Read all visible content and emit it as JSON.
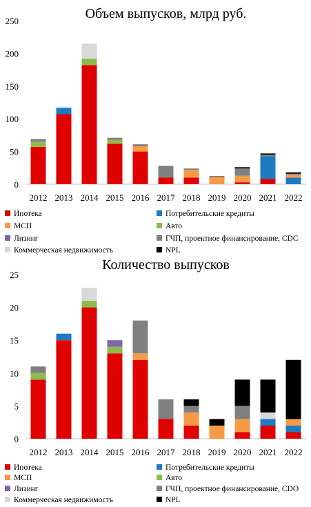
{
  "colors": {
    "mortgage": "#e00000",
    "consumer": "#1f7bbf",
    "sme": "#f79a46",
    "auto": "#8cbd4a",
    "leasing": "#8066a6",
    "ppp": "#808080",
    "commercial": "#d9d9d9",
    "npl": "#000000"
  },
  "chart_data": [
    {
      "type": "bar",
      "stacked": true,
      "title": "Объем выпусков, млрд руб.",
      "categories": [
        "2012",
        "2013",
        "2014",
        "2015",
        "2016",
        "2017",
        "2018",
        "2019",
        "2020",
        "2021",
        "2022"
      ],
      "ylim": [
        0,
        250
      ],
      "yticks": [
        0,
        50,
        100,
        150,
        200,
        250
      ],
      "legend_position": "bottom",
      "series": [
        {
          "name": "Ипотека",
          "key": "mortgage",
          "values": [
            57,
            107,
            182,
            62,
            50,
            10,
            10,
            0,
            3,
            8,
            0
          ]
        },
        {
          "name": "Потребительские кредиты",
          "key": "consumer",
          "values": [
            0,
            10,
            0,
            0,
            0,
            0,
            0,
            0,
            0,
            35,
            10
          ]
        },
        {
          "name": "МСП",
          "key": "sme",
          "values": [
            0,
            0,
            0,
            0,
            8,
            0,
            12,
            11,
            10,
            0,
            4
          ]
        },
        {
          "name": "Авто",
          "key": "auto",
          "values": [
            8,
            0,
            10,
            6,
            0,
            0,
            0,
            0,
            0,
            0,
            0
          ]
        },
        {
          "name": "Лизинг",
          "key": "leasing",
          "values": [
            1,
            0,
            0,
            1,
            0,
            0,
            0,
            0,
            0,
            0,
            0
          ]
        },
        {
          "name": "ГЧП, проектное финансирование, CDC",
          "key": "ppp",
          "values": [
            3,
            0,
            0,
            2,
            3,
            18,
            2,
            0,
            11,
            2,
            2
          ]
        },
        {
          "name": "Коммерческая недвижимость",
          "key": "commercial",
          "values": [
            0,
            0,
            23,
            0,
            0,
            0,
            0,
            0,
            0,
            0,
            0
          ]
        },
        {
          "name": "NPL",
          "key": "npl",
          "values": [
            0,
            0,
            0,
            0,
            0,
            0,
            0,
            1,
            2,
            2,
            2
          ]
        }
      ]
    },
    {
      "type": "bar",
      "stacked": true,
      "title": "Количество выпусков",
      "categories": [
        "2012",
        "2013",
        "2014",
        "2015",
        "2016",
        "2017",
        "2018",
        "2019",
        "2020",
        "2021",
        "2022"
      ],
      "ylim": [
        0,
        25
      ],
      "yticks": [
        0,
        5,
        10,
        15,
        20,
        25
      ],
      "legend_position": "bottom",
      "series": [
        {
          "name": "Ипотека",
          "key": "mortgage",
          "values": [
            9,
            15,
            20,
            13,
            12,
            3,
            2,
            0,
            1,
            2,
            1
          ]
        },
        {
          "name": "Потребительские кредиты",
          "key": "consumer",
          "values": [
            0,
            1,
            0,
            0,
            0,
            0,
            0,
            0,
            0,
            1,
            1
          ]
        },
        {
          "name": "МСП",
          "key": "sme",
          "values": [
            0,
            0,
            0,
            0,
            1,
            0,
            2,
            2,
            2,
            0,
            1
          ]
        },
        {
          "name": "Авто",
          "key": "auto",
          "values": [
            1,
            0,
            1,
            1,
            0,
            0,
            0,
            0,
            0,
            0,
            0
          ]
        },
        {
          "name": "Лизинг",
          "key": "leasing",
          "values": [
            0,
            0,
            0,
            1,
            0,
            0,
            0,
            0,
            0,
            0,
            0
          ]
        },
        {
          "name": "ГЧП, проектное финансирование, CDO",
          "key": "ppp",
          "values": [
            1,
            0,
            0,
            0,
            5,
            3,
            1,
            0,
            2,
            0,
            0
          ]
        },
        {
          "name": "Коммерческая недвижимость",
          "key": "commercial",
          "values": [
            0,
            0,
            2,
            0,
            0,
            0,
            0,
            0,
            0,
            1,
            0
          ]
        },
        {
          "name": "NPL",
          "key": "npl",
          "values": [
            0,
            0,
            0,
            0,
            0,
            0,
            1,
            1,
            4,
            5,
            9
          ]
        }
      ]
    }
  ]
}
